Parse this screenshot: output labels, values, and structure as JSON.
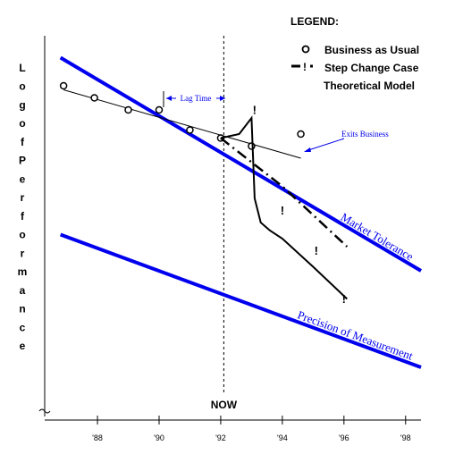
{
  "chart_data": {
    "type": "line",
    "ylabel": "Log of Performance",
    "x_ticks": [
      "'88",
      "'90",
      "'92",
      "'94",
      "'96",
      "'98"
    ],
    "x_tick_values": [
      1988,
      1990,
      1992,
      1994,
      1996,
      1998
    ],
    "xlim": [
      1986.2,
      1998.5
    ],
    "ylim": [
      0,
      100
    ],
    "legend": {
      "title": "LEGEND:",
      "placement": "top-right",
      "entries": [
        {
          "symbol": "o",
          "label": "Business as Usual"
        },
        {
          "symbol": "— ·",
          "label": "Step Change Case"
        },
        {
          "symbol": "",
          "label": "Theoretical Model"
        }
      ]
    },
    "now_label": "NOW",
    "now_x": 1992.1,
    "lag_label": "Lag Time",
    "exits_label": "Exits Business",
    "market_tolerance": {
      "label": "Market Tolerance",
      "x": [
        1986.8,
        1998.5
      ],
      "y": [
        89,
        36
      ]
    },
    "precision_of_measurement": {
      "label": "Precision of Measurement",
      "x": [
        1986.8,
        1998.5
      ],
      "y": [
        45,
        12
      ]
    },
    "business_as_usual": {
      "x": [
        1986.9,
        1987.9,
        1989.0,
        1990.0,
        1991.0,
        1992.0,
        1993.0,
        1994.6
      ],
      "y": [
        82,
        79,
        76,
        76,
        71,
        69,
        67,
        70
      ]
    },
    "bau_trend": {
      "x": [
        1986.9,
        1994.6
      ],
      "y": [
        81,
        64
      ]
    },
    "step_change_case": {
      "x": [
        1992.0,
        1994.0,
        1996.1
      ],
      "y": [
        69,
        57,
        42
      ]
    },
    "theoretical_model": {
      "x": [
        1992.0,
        1992.6,
        1993.0,
        1993.1,
        1993.3,
        1993.6,
        1994.0,
        1995.0,
        1996.1
      ],
      "y": [
        69,
        70,
        74,
        54,
        48,
        46,
        44,
        37,
        29
      ]
    },
    "exclamation_marks": [
      {
        "x": 1993.1,
        "y": 75
      },
      {
        "x": 1994.0,
        "y": 50
      },
      {
        "x": 1995.1,
        "y": 40
      },
      {
        "x": 1996.0,
        "y": 28
      }
    ]
  }
}
